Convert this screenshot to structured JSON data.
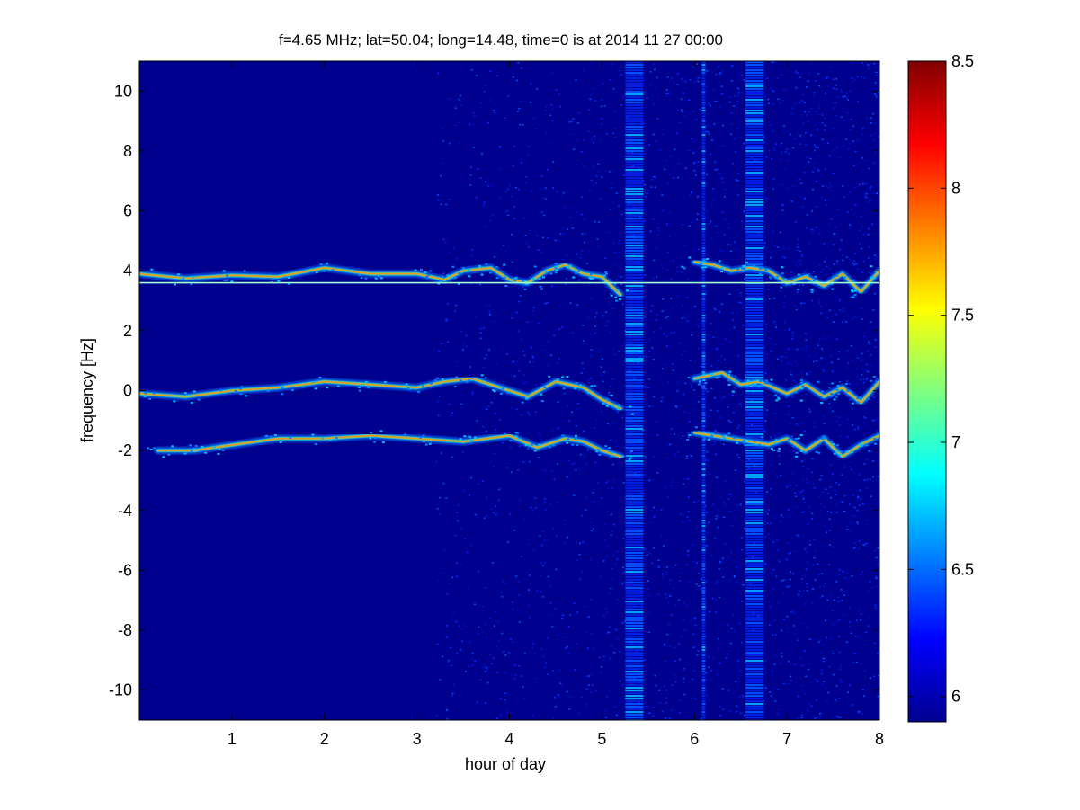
{
  "chart_data": {
    "type": "heatmap",
    "title": "f=4.65 MHz;  lat=50.04; long=14.48, time=0 is at 2014 11 27 00:00",
    "xlabel": "hour of day",
    "ylabel": "frequency [Hz]",
    "xlim": [
      0,
      8
    ],
    "ylim": [
      -11,
      11
    ],
    "x_ticks": [
      1,
      2,
      3,
      4,
      5,
      6,
      7,
      8
    ],
    "y_ticks": [
      -10,
      -8,
      -6,
      -4,
      -2,
      0,
      2,
      4,
      6,
      8,
      10
    ],
    "colorbar": {
      "limits": [
        5.9,
        8.5
      ],
      "ticks": [
        6,
        6.5,
        7,
        7.5,
        8,
        8.5
      ],
      "colormap": "jet"
    },
    "features": {
      "horizontal_line": {
        "freq_hz": 3.6,
        "from_hour": 0,
        "to_hour": 8
      },
      "traces": [
        {
          "name_hint": "upper band",
          "points": [
            [
              0.0,
              3.9
            ],
            [
              0.5,
              3.75
            ],
            [
              1.0,
              3.85
            ],
            [
              1.5,
              3.8
            ],
            [
              2.0,
              4.1
            ],
            [
              2.5,
              3.9
            ],
            [
              3.0,
              3.9
            ],
            [
              3.3,
              3.7
            ],
            [
              3.5,
              4.0
            ],
            [
              3.8,
              4.1
            ],
            [
              4.0,
              3.7
            ],
            [
              4.2,
              3.6
            ],
            [
              4.4,
              4.0
            ],
            [
              4.6,
              4.2
            ],
            [
              4.8,
              3.9
            ],
            [
              5.0,
              3.8
            ],
            [
              5.2,
              3.2
            ]
          ]
        },
        {
          "name_hint": "upper band (after gap)",
          "points": [
            [
              6.0,
              4.3
            ],
            [
              6.2,
              4.2
            ],
            [
              6.4,
              4.0
            ],
            [
              6.6,
              4.1
            ],
            [
              6.8,
              4.0
            ],
            [
              7.0,
              3.6
            ],
            [
              7.2,
              3.8
            ],
            [
              7.4,
              3.5
            ],
            [
              7.6,
              3.9
            ],
            [
              7.8,
              3.3
            ],
            [
              8.0,
              4.0
            ]
          ]
        },
        {
          "name_hint": "middle band",
          "points": [
            [
              0.0,
              -0.1
            ],
            [
              0.5,
              -0.2
            ],
            [
              1.0,
              0.0
            ],
            [
              1.5,
              0.1
            ],
            [
              2.0,
              0.3
            ],
            [
              2.5,
              0.2
            ],
            [
              3.0,
              0.1
            ],
            [
              3.3,
              0.3
            ],
            [
              3.6,
              0.4
            ],
            [
              3.9,
              0.1
            ],
            [
              4.2,
              -0.2
            ],
            [
              4.5,
              0.3
            ],
            [
              4.8,
              0.1
            ],
            [
              5.0,
              -0.3
            ],
            [
              5.2,
              -0.6
            ]
          ]
        },
        {
          "name_hint": "middle band (after gap)",
          "points": [
            [
              6.0,
              0.4
            ],
            [
              6.3,
              0.6
            ],
            [
              6.5,
              0.2
            ],
            [
              6.7,
              0.3
            ],
            [
              7.0,
              -0.1
            ],
            [
              7.2,
              0.2
            ],
            [
              7.4,
              -0.2
            ],
            [
              7.6,
              0.1
            ],
            [
              7.8,
              -0.4
            ],
            [
              8.0,
              0.3
            ]
          ]
        },
        {
          "name_hint": "lower band",
          "points": [
            [
              0.2,
              -2.0
            ],
            [
              0.6,
              -2.0
            ],
            [
              0.8,
              -1.9
            ],
            [
              1.5,
              -1.6
            ],
            [
              2.0,
              -1.6
            ],
            [
              2.5,
              -1.5
            ],
            [
              3.0,
              -1.6
            ],
            [
              3.5,
              -1.7
            ],
            [
              4.0,
              -1.5
            ],
            [
              4.3,
              -1.9
            ],
            [
              4.6,
              -1.6
            ],
            [
              4.8,
              -1.7
            ],
            [
              5.0,
              -2.0
            ],
            [
              5.2,
              -2.2
            ]
          ]
        },
        {
          "name_hint": "lower band (after gap)",
          "points": [
            [
              6.0,
              -1.4
            ],
            [
              6.2,
              -1.5
            ],
            [
              6.4,
              -1.6
            ],
            [
              6.6,
              -1.7
            ],
            [
              6.8,
              -1.8
            ],
            [
              7.0,
              -1.6
            ],
            [
              7.2,
              -2.0
            ],
            [
              7.4,
              -1.6
            ],
            [
              7.6,
              -2.2
            ],
            [
              7.8,
              -1.8
            ],
            [
              8.0,
              -1.5
            ]
          ]
        }
      ],
      "vertical_stripes_hours": [
        5.35,
        6.1,
        6.65
      ],
      "noise_onset_hour": 3.2
    }
  }
}
